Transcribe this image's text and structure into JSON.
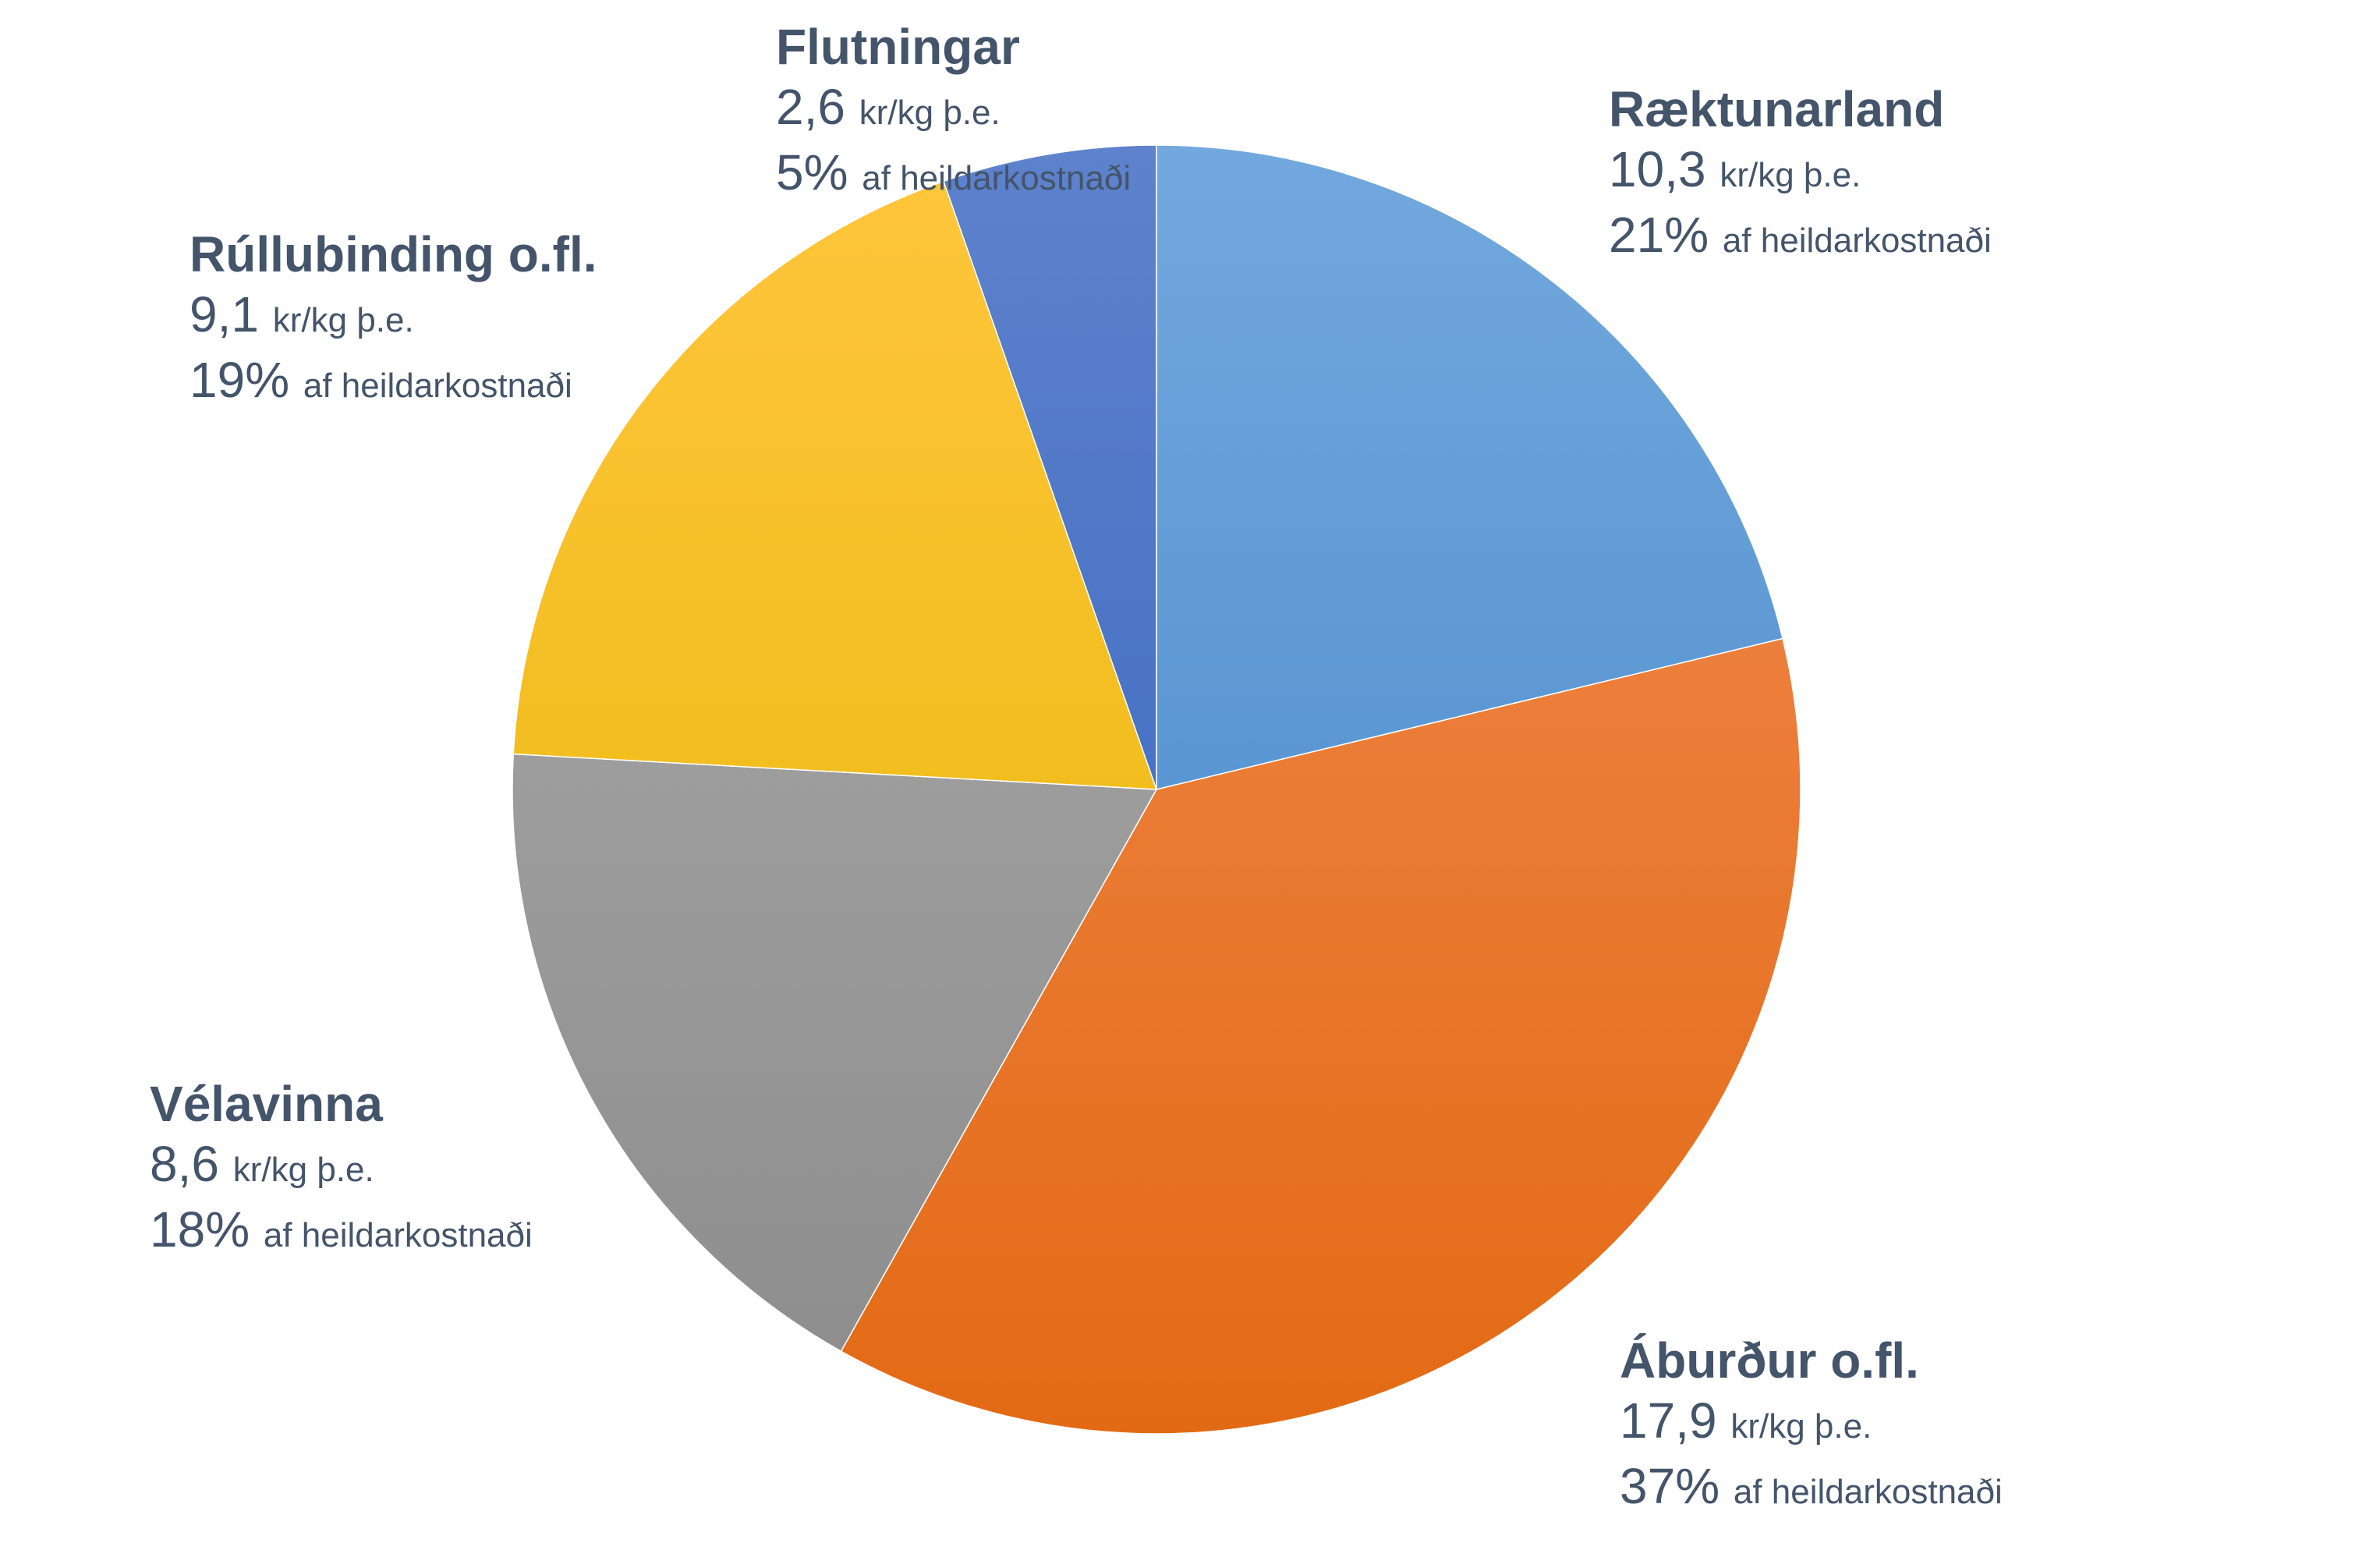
{
  "chart_data": {
    "type": "pie",
    "title": "",
    "start": "top-clockwise",
    "unit_label": "kr/kg þ.e.",
    "share_label": "af heildarkostnaði",
    "slices": [
      {
        "name": "Ræktunarland",
        "value": 10.3,
        "value_text": "10,3",
        "percent": 21,
        "percent_text": "21%",
        "color_top": "#72A8DD",
        "color_bottom": "#4184C8"
      },
      {
        "name": "Áburður o.fl.",
        "value": 17.9,
        "value_text": "17,9",
        "percent": 37,
        "percent_text": "37%",
        "color_top": "#F28C55",
        "color_bottom": "#E36A14"
      },
      {
        "name": "Vélavinna",
        "value": 8.6,
        "value_text": "8,6",
        "percent": 18,
        "percent_text": "18%",
        "color_top": "#ADADAD",
        "color_bottom": "#8C8C8C"
      },
      {
        "name": "Rúllubinding o.fl.",
        "value": 9.1,
        "value_text": "9,1",
        "percent": 19,
        "percent_text": "19%",
        "color_top": "#FFC63D",
        "color_bottom": "#E4B500"
      },
      {
        "name": "Flutningar",
        "value": 2.6,
        "value_text": "2,6",
        "percent": 5,
        "percent_text": "5%",
        "color_top": "#5E82CC",
        "color_bottom": "#3162BF"
      }
    ]
  }
}
